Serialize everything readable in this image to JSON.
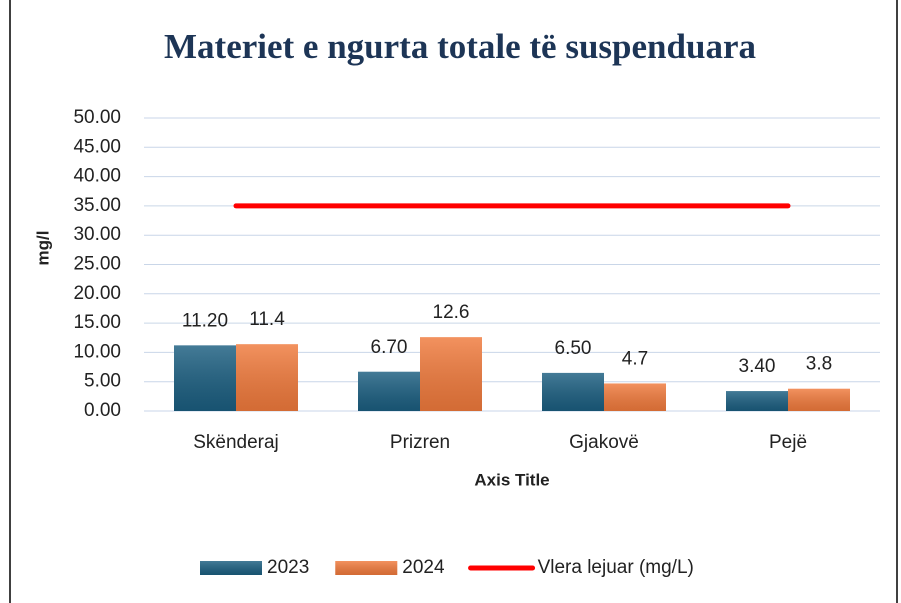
{
  "chart_data": {
    "type": "bar",
    "title": "Materiet e ngurta totale të suspenduara",
    "x_label": "Axis Title",
    "y_label": "mg/l",
    "categories": [
      "Skënderaj",
      "Prizren",
      "Gjakovë",
      "Pejë"
    ],
    "series": [
      {
        "name": "2023",
        "color": "#1b5e80",
        "values": [
          11.2,
          6.7,
          6.5,
          3.4
        ],
        "value_labels": [
          "11.20",
          "6.70",
          "6.50",
          "3.40"
        ]
      },
      {
        "name": "2024",
        "color": "#f07a3c",
        "values": [
          11.4,
          12.6,
          4.7,
          3.8
        ]
      },
      {
        "name": "Vlera lejuar (mg/L)",
        "type": "line",
        "color": "#ff0000",
        "values": [
          35,
          35,
          35,
          35
        ]
      }
    ],
    "ylim": [
      0,
      50
    ],
    "yticks": [
      {
        "value": 0,
        "label": "0.00"
      },
      {
        "value": 5,
        "label": "5.00"
      },
      {
        "value": 10,
        "label": "10.00"
      },
      {
        "value": 15,
        "label": "15.00"
      },
      {
        "value": 20,
        "label": "20.00"
      },
      {
        "value": 25,
        "label": "25.00"
      },
      {
        "value": 30,
        "label": "30.00"
      },
      {
        "value": 35,
        "label": "35.00"
      },
      {
        "value": 40,
        "label": "40.00"
      },
      {
        "value": 45,
        "label": "45.00"
      },
      {
        "value": 50,
        "label": "50.00"
      }
    ],
    "grid": true,
    "legend": "bottom"
  }
}
